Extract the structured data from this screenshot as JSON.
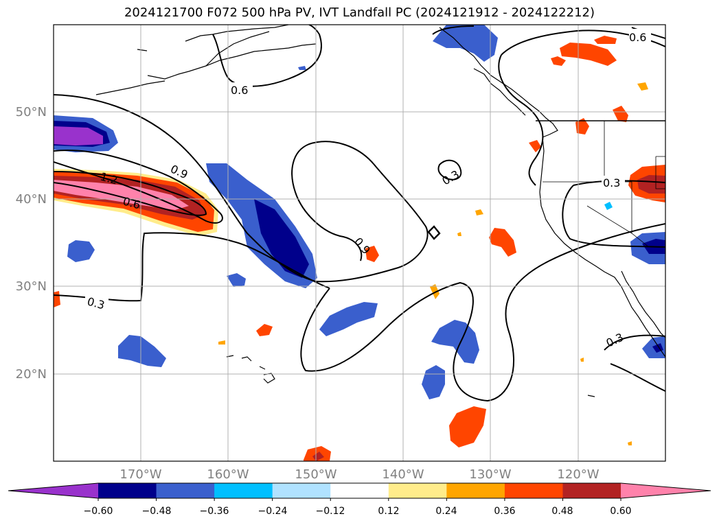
{
  "title": "2024121700 F072 500 hPa PV, IVT Landfall PC (2024121912 - 2024122212)",
  "map": {
    "lon_labels": [
      "170°W",
      "160°W",
      "150°W",
      "140°W",
      "130°W",
      "120°W"
    ],
    "lat_labels": [
      "50°N",
      "40°N",
      "30°N",
      "20°N"
    ],
    "contour_labels": [
      "0.6",
      "0.6",
      "0.9",
      "1.2",
      "0.6",
      "0.3",
      "0.9",
      "0.3",
      "0.3",
      "0.3"
    ],
    "land_outline_color": "#000000",
    "grid_color": "#b0b0b0"
  },
  "colorbar": {
    "ticks": [
      "−0.60",
      "−0.48",
      "−0.36",
      "−0.24",
      "−0.12",
      "0.12",
      "0.24",
      "0.36",
      "0.48",
      "0.60"
    ],
    "colors": [
      "#9932cc",
      "#00008b",
      "#3a5fcd",
      "#00bfff",
      "#b0e2ff",
      "#ffffff",
      "#ffec8b",
      "#ffa500",
      "#ff4500",
      "#b22222",
      "#ff82ab"
    ]
  }
}
